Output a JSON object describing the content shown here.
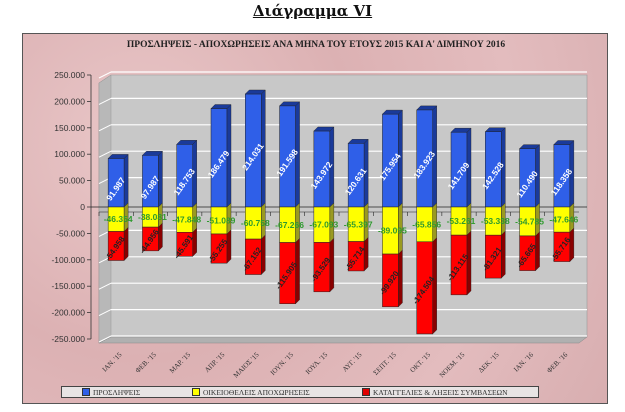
{
  "document_title": "Διάγραμμα VI",
  "chart_data": {
    "type": "bar",
    "stacked": true,
    "three_d": true,
    "title": "ΠΡΟΣΛΗΨΕΙΣ - ΑΠΟΧΩΡΗΣΕΙΣ ΑΝΑ ΜΗΝΑ ΤΟΥ ΕΤΟΥΣ 2015 ΚΑΙ Α' ΔΙΜΗΝΟΥ 2016",
    "xlabel": "",
    "ylabel": "",
    "ylim": [
      -250000,
      250000
    ],
    "yticks": [
      250000,
      200000,
      150000,
      100000,
      50000,
      0,
      -50000,
      -100000,
      -150000,
      -200000,
      -250000
    ],
    "ytick_labels": [
      "250.000",
      "200.000",
      "150.000",
      "100.000",
      "50.000",
      "0",
      "-50.000",
      "-100.000",
      "-150.000",
      "-200.000",
      "-250.000"
    ],
    "grid": true,
    "legend_position": "bottom",
    "categories": [
      "ΙΑΝ. '15",
      "ΦΕΒ. '15",
      "ΜΑΡ. '15",
      "ΑΠΡ. '15",
      "ΜΑΙΟΣ '15",
      "ΙΟΥΝ. '15",
      "ΙΟΥΛ. '15",
      "ΑΥΓ. '15",
      "ΣΕΠΤ. '15",
      "ΟΚΤ. '15",
      "ΝΟΕΜ. '15",
      "ΔΕΚ. '15",
      "ΙΑΝ. '16",
      "ΦΕΒ. '16"
    ],
    "series": [
      {
        "name": "ΠΡΟΣΛΗΨΕΙΣ",
        "color": "#2f5fe8",
        "values": [
          91987,
          97987,
          118753,
          186479,
          214031,
          191598,
          143972,
          120631,
          175954,
          183923,
          141709,
          142528,
          110490,
          118358
        ],
        "labels": [
          "91.987",
          "97.987",
          "118.753",
          "186.479",
          "214.031",
          "191.598",
          "143.972",
          "120.631",
          "175.954",
          "183.923",
          "141.709",
          "142.528",
          "110.490",
          "118.358"
        ]
      },
      {
        "name": "ΟΙΚΕΙΟΘΕΛΕΙΣ ΑΠΟΧΩΡΗΣΕΙΣ",
        "color": "#ffff00",
        "values": [
          -46354,
          -38081,
          -47848,
          -51089,
          -60758,
          -67266,
          -67093,
          -65397,
          -89095,
          -65856,
          -53261,
          -53338,
          -54785,
          -47646
        ],
        "labels": [
          "-46.354",
          "-38.081",
          "-47.848",
          "-51.089",
          "-60.758",
          "-67.266",
          "-67.093",
          "-65.397",
          "-89.095",
          "-65.856",
          "-53.261",
          "-53.338",
          "-54.785",
          "-47.646"
        ]
      },
      {
        "name": "ΚΑΤΑΓΓΕΛΙΕΣ & ΛΗΞΕΙΣ ΣΥΜΒΑΣΕΩΝ",
        "color": "#ff0000",
        "values": [
          -54958,
          -44956,
          -45591,
          -55255,
          -67152,
          -115905,
          -93529,
          -55714,
          -99920,
          -174504,
          -113115,
          -81321,
          -65665,
          -55716
        ],
        "labels": [
          "-54.958",
          "-44.956",
          "-45.591",
          "-55.255",
          "-67.152",
          "-115.905",
          "-93.529",
          "-55.714",
          "-99.920",
          "-174.504",
          "-113.115",
          "-81.321",
          "-65.665",
          "-55.716"
        ]
      }
    ]
  }
}
